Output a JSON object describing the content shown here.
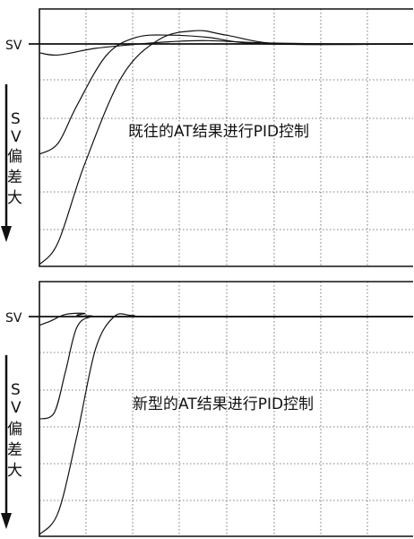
{
  "panels": [
    {
      "sv_label": "SV",
      "side_label": [
        "S",
        "V",
        "偏",
        "差",
        "大"
      ],
      "caption": "既往的AT结果进行PID控制"
    },
    {
      "sv_label": "SV",
      "side_label": [
        "S",
        "V",
        "偏",
        "差",
        "大"
      ],
      "caption": "新型的AT结果进行PID控制"
    }
  ],
  "chart_data": [
    {
      "type": "line",
      "title": "",
      "xlabel": "",
      "ylabel": "SV偏差大",
      "grid": true,
      "series": [
        {
          "x": [
            0,
            0.05,
            0.15,
            0.27,
            0.35,
            0.45,
            0.6,
            0.8,
            1.0
          ],
          "values": [
            0.04,
            0.05,
            0.02,
            0.0,
            -0.01,
            -0.015,
            -0.005,
            0.0,
            0.0
          ]
        },
        {
          "x": [
            0,
            0.05,
            0.1,
            0.18,
            0.26,
            0.35,
            0.45,
            0.6,
            1.0
          ],
          "values": [
            0.5,
            0.45,
            0.28,
            0.05,
            -0.03,
            -0.04,
            -0.03,
            0.0,
            0.0
          ]
        },
        {
          "x": [
            0,
            0.05,
            0.12,
            0.22,
            0.32,
            0.42,
            0.5,
            0.65,
            1.0
          ],
          "values": [
            1.0,
            0.9,
            0.55,
            0.15,
            -0.02,
            -0.06,
            -0.04,
            0.0,
            0.0
          ]
        }
      ]
    },
    {
      "type": "line",
      "title": "",
      "xlabel": "",
      "ylabel": "SV偏差大",
      "grid": true,
      "series": [
        {
          "x": [
            0,
            0.03,
            0.07,
            0.12,
            0.18,
            1.0
          ],
          "values": [
            0.04,
            0.02,
            -0.01,
            -0.015,
            0.0,
            0.0
          ]
        },
        {
          "x": [
            0,
            0.04,
            0.07,
            0.1,
            0.14,
            0.2,
            1.0
          ],
          "values": [
            0.47,
            0.44,
            0.25,
            0.05,
            0.0,
            0.0,
            0.0
          ]
        },
        {
          "x": [
            0,
            0.05,
            0.1,
            0.15,
            0.2,
            0.25,
            0.33,
            1.0
          ],
          "values": [
            1.0,
            0.9,
            0.55,
            0.15,
            0.0,
            -0.005,
            0.0,
            0.0
          ]
        }
      ]
    }
  ]
}
